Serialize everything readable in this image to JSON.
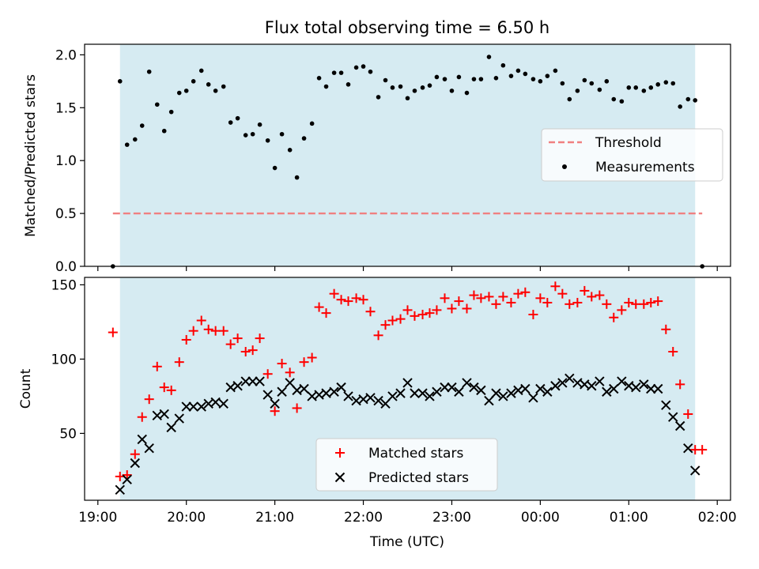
{
  "title": "Flux total observing time = 6.50 h",
  "xlabel": "Time (UTC)",
  "x_ticks": [
    "19:00",
    "20:00",
    "21:00",
    "22:00",
    "23:00",
    "00:00",
    "01:00",
    "02:00"
  ],
  "colors": {
    "shade": "#add8e6",
    "threshold": "#f08080",
    "measurements": "#000000",
    "matched": "#ff0000",
    "predicted": "#000000"
  },
  "chart_data": [
    {
      "type": "scatter",
      "ylabel": "Matched/Predicted stars",
      "x_unit": "hours since 19:00 UTC (rendered as clock labels)",
      "xlim": [
        -0.15,
        7.15
      ],
      "ylim": [
        0,
        2.1
      ],
      "yticks": [
        "0.0",
        "0.5",
        "1.0",
        "1.5",
        "2.0"
      ],
      "observing_window": [
        0.25,
        6.75
      ],
      "threshold": {
        "name": "Threshold",
        "value": 0.5,
        "x_range": [
          0.17,
          6.83
        ]
      },
      "legend": {
        "placement": "right",
        "entries": [
          "Threshold",
          "Measurements"
        ]
      },
      "series": [
        {
          "name": "Measurements",
          "x": [
            0.17,
            0.25,
            0.33,
            0.42,
            0.5,
            0.58,
            0.67,
            0.75,
            0.83,
            0.92,
            1.0,
            1.08,
            1.17,
            1.25,
            1.33,
            1.42,
            1.5,
            1.58,
            1.67,
            1.75,
            1.83,
            1.92,
            2.0,
            2.08,
            2.17,
            2.25,
            2.33,
            2.42,
            2.5,
            2.58,
            2.67,
            2.75,
            2.83,
            2.92,
            3.0,
            3.08,
            3.17,
            3.25,
            3.33,
            3.42,
            3.5,
            3.58,
            3.67,
            3.75,
            3.83,
            3.92,
            4.0,
            4.08,
            4.17,
            4.25,
            4.33,
            4.42,
            4.5,
            4.58,
            4.67,
            4.75,
            4.83,
            4.92,
            5.0,
            5.08,
            5.17,
            5.25,
            5.33,
            5.42,
            5.5,
            5.58,
            5.67,
            5.75,
            5.83,
            5.92,
            6.0,
            6.08,
            6.17,
            6.25,
            6.33,
            6.42,
            6.5,
            6.58,
            6.67,
            6.75,
            6.83
          ],
          "y": [
            0.0,
            1.75,
            1.15,
            1.2,
            1.33,
            1.84,
            1.53,
            1.28,
            1.46,
            1.64,
            1.66,
            1.75,
            1.85,
            1.72,
            1.66,
            1.7,
            1.36,
            1.4,
            1.24,
            1.25,
            1.34,
            1.19,
            0.93,
            1.25,
            1.1,
            0.84,
            1.21,
            1.35,
            1.78,
            1.7,
            1.83,
            1.83,
            1.72,
            1.88,
            1.89,
            1.84,
            1.6,
            1.76,
            1.69,
            1.7,
            1.59,
            1.66,
            1.69,
            1.71,
            1.79,
            1.77,
            1.66,
            1.79,
            1.64,
            1.77,
            1.77,
            1.98,
            1.78,
            1.9,
            1.8,
            1.85,
            1.82,
            1.77,
            1.75,
            1.8,
            1.85,
            1.73,
            1.58,
            1.66,
            1.76,
            1.73,
            1.67,
            1.75,
            1.58,
            1.56,
            1.69,
            1.69,
            1.66,
            1.69,
            1.72,
            1.74,
            1.73,
            1.51,
            1.58,
            1.57,
            0.0
          ]
        }
      ]
    },
    {
      "type": "scatter",
      "ylabel": "Count",
      "x_unit": "hours since 19:00 UTC (rendered as clock labels)",
      "xlim": [
        -0.15,
        7.15
      ],
      "ylim": [
        5,
        155
      ],
      "yticks": [
        "50",
        "100",
        "150"
      ],
      "observing_window": [
        0.25,
        6.75
      ],
      "legend": {
        "placement": "lower center",
        "entries": [
          "Matched stars",
          "Predicted stars"
        ]
      },
      "series": [
        {
          "name": "Matched stars",
          "marker": "+",
          "x": [
            0.17,
            0.25,
            0.33,
            0.42,
            0.5,
            0.58,
            0.67,
            0.75,
            0.83,
            0.92,
            1.0,
            1.08,
            1.17,
            1.25,
            1.33,
            1.42,
            1.5,
            1.58,
            1.67,
            1.75,
            1.83,
            1.92,
            2.0,
            2.08,
            2.17,
            2.25,
            2.33,
            2.42,
            2.5,
            2.58,
            2.67,
            2.75,
            2.83,
            2.92,
            3.0,
            3.08,
            3.17,
            3.25,
            3.33,
            3.42,
            3.5,
            3.58,
            3.67,
            3.75,
            3.83,
            3.92,
            4.0,
            4.08,
            4.17,
            4.25,
            4.33,
            4.42,
            4.5,
            4.58,
            4.67,
            4.75,
            4.83,
            4.92,
            5.0,
            5.08,
            5.17,
            5.25,
            5.33,
            5.42,
            5.5,
            5.58,
            5.67,
            5.75,
            5.83,
            5.92,
            6.0,
            6.08,
            6.17,
            6.25,
            6.33,
            6.42,
            6.5,
            6.58,
            6.67,
            6.75,
            6.83
          ],
          "y": [
            118,
            21,
            22,
            36,
            61,
            73,
            95,
            81,
            79,
            98,
            113,
            119,
            126,
            120,
            119,
            119,
            110,
            114,
            105,
            106,
            114,
            90,
            65,
            97,
            91,
            67,
            98,
            101,
            135,
            131,
            144,
            140,
            139,
            141,
            140,
            132,
            116,
            123,
            126,
            127,
            133,
            129,
            130,
            131,
            133,
            141,
            134,
            139,
            134,
            143,
            141,
            142,
            137,
            142,
            138,
            144,
            145,
            130,
            141,
            138,
            149,
            144,
            137,
            138,
            146,
            142,
            143,
            137,
            128,
            133,
            138,
            137,
            137,
            138,
            139,
            120,
            105,
            83,
            63,
            39,
            39
          ]
        },
        {
          "name": "Predicted stars",
          "marker": "x",
          "x": [
            0.17,
            0.25,
            0.33,
            0.42,
            0.5,
            0.58,
            0.67,
            0.75,
            0.83,
            0.92,
            1.0,
            1.08,
            1.17,
            1.25,
            1.33,
            1.42,
            1.5,
            1.58,
            1.67,
            1.75,
            1.83,
            1.92,
            2.0,
            2.08,
            2.17,
            2.25,
            2.33,
            2.42,
            2.5,
            2.58,
            2.67,
            2.75,
            2.83,
            2.92,
            3.0,
            3.08,
            3.17,
            3.25,
            3.33,
            3.42,
            3.5,
            3.58,
            3.67,
            3.75,
            3.83,
            3.92,
            4.0,
            4.08,
            4.17,
            4.25,
            4.33,
            4.42,
            4.5,
            4.58,
            4.67,
            4.75,
            4.83,
            4.92,
            5.0,
            5.08,
            5.17,
            5.25,
            5.33,
            5.42,
            5.5,
            5.58,
            5.67,
            5.75,
            5.83,
            5.92,
            6.0,
            6.08,
            6.17,
            6.25,
            6.33,
            6.42,
            6.5,
            6.58,
            6.67,
            6.75,
            6.83
          ],
          "y": [
            null,
            12,
            19,
            30,
            46,
            40,
            62,
            63,
            54,
            60,
            68,
            68,
            68,
            70,
            71,
            70,
            81,
            82,
            85,
            85,
            85,
            76,
            70,
            78,
            84,
            79,
            80,
            75,
            76,
            77,
            78,
            81,
            75,
            72,
            73,
            74,
            72,
            70,
            75,
            77,
            84,
            77,
            77,
            75,
            78,
            81,
            81,
            78,
            84,
            81,
            79,
            72,
            77,
            75,
            77,
            79,
            80,
            74,
            80,
            78,
            82,
            84,
            87,
            84,
            83,
            82,
            85,
            78,
            80,
            85,
            82,
            81,
            83,
            80,
            80,
            69,
            61,
            55,
            40,
            25,
            null
          ]
        }
      ]
    }
  ]
}
